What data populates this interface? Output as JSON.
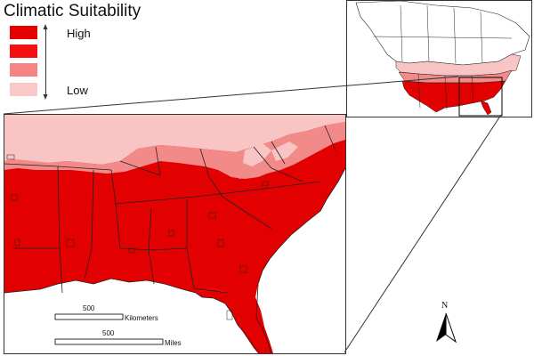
{
  "legend": {
    "title": "Climatic Suitability",
    "high_label": "High",
    "low_label": "Low",
    "classes": [
      {
        "color": "#e40000"
      },
      {
        "color": "#f51111"
      },
      {
        "color": "#f58585"
      },
      {
        "color": "#fbc8c8"
      }
    ]
  },
  "scalebar": {
    "km_value": "500",
    "km_unit": "Kilometers",
    "mi_value": "500",
    "mi_unit": "Miles"
  },
  "north_arrow": {
    "label": "N"
  },
  "colors": {
    "high": "#e20000",
    "med_high": "#f01818",
    "med_low": "#f38a8a",
    "low": "#f9c4c4",
    "background": "#ffffff",
    "water": "#ffffff"
  }
}
